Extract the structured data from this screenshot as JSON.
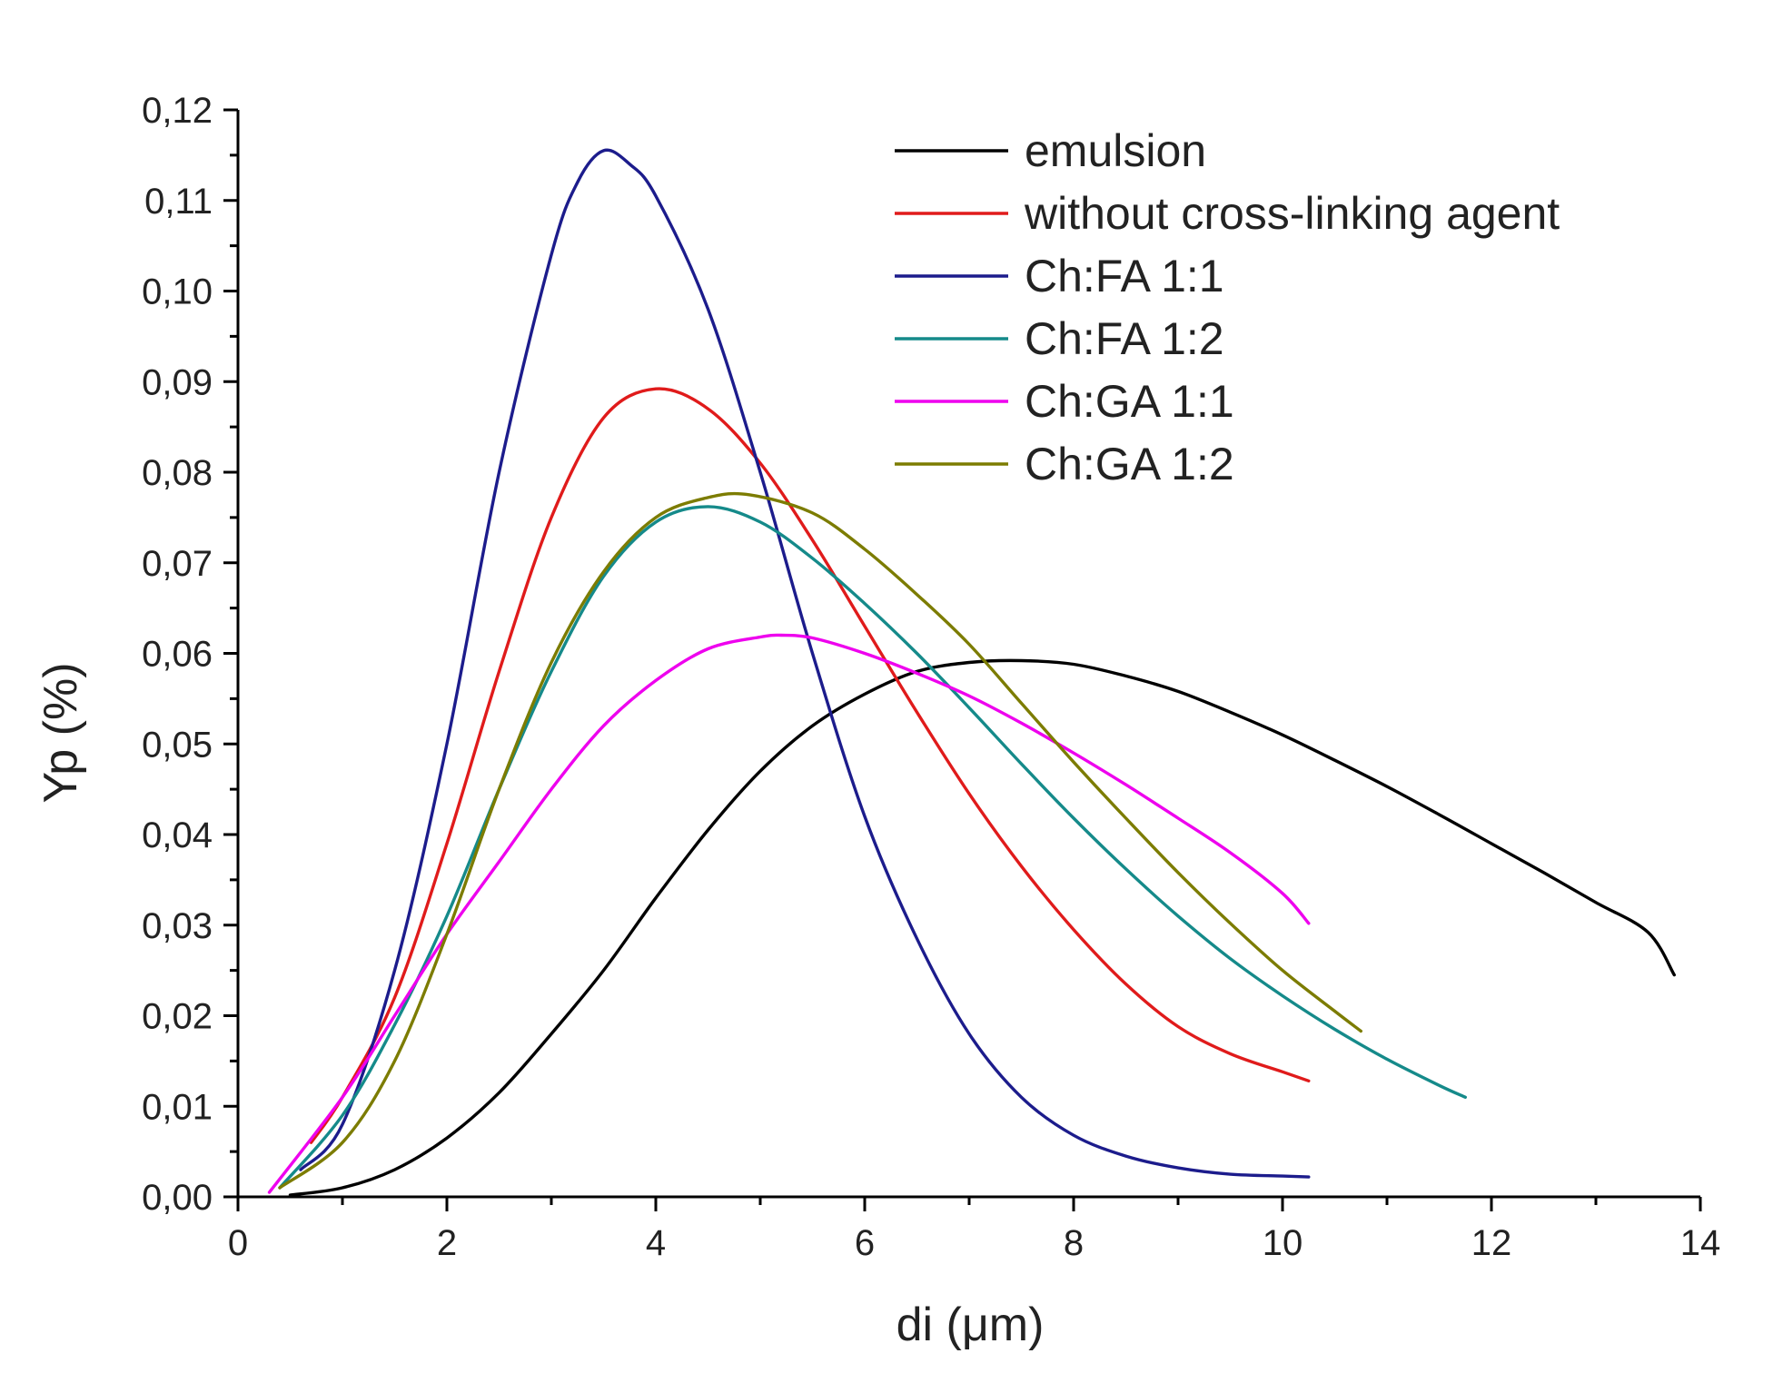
{
  "chart_data": {
    "type": "line",
    "title": "",
    "xlabel": "di (μm)",
    "ylabel": "Yp (%)",
    "xlim": [
      0,
      14
    ],
    "ylim": [
      0,
      0.12
    ],
    "x_ticks": [
      0,
      2,
      4,
      6,
      8,
      10,
      12,
      14
    ],
    "x_tick_labels": [
      "0",
      "2",
      "4",
      "6",
      "8",
      "10",
      "12",
      "14"
    ],
    "y_ticks": [
      0,
      0.01,
      0.02,
      0.03,
      0.04,
      0.05,
      0.06,
      0.07,
      0.08,
      0.09,
      0.1,
      0.11,
      0.12
    ],
    "y_tick_labels": [
      "0,00",
      "0,01",
      "0,02",
      "0,03",
      "0,04",
      "0,05",
      "0,06",
      "0,07",
      "0,08",
      "0,09",
      "0,10",
      "0,11",
      "0,12"
    ],
    "legend_position": "top-right",
    "grid": false,
    "series": [
      {
        "name": "emulsion",
        "color": "#000000",
        "x": [
          0.5,
          1,
          1.5,
          2,
          2.5,
          3,
          3.5,
          4,
          4.5,
          5,
          5.5,
          6,
          6.5,
          7,
          7.5,
          8,
          8.5,
          9,
          9.5,
          10,
          10.5,
          11,
          11.5,
          12,
          12.5,
          13,
          13.5,
          13.75
        ],
        "y": [
          0.0002,
          0.001,
          0.003,
          0.0065,
          0.0115,
          0.018,
          0.025,
          0.033,
          0.0405,
          0.047,
          0.052,
          0.0555,
          0.058,
          0.059,
          0.0592,
          0.0588,
          0.0575,
          0.0558,
          0.0535,
          0.051,
          0.0482,
          0.0453,
          0.0422,
          0.039,
          0.0358,
          0.0325,
          0.0292,
          0.0245
        ]
      },
      {
        "name": "without cross-linking agent",
        "color": "#e01b1b",
        "x": [
          0.7,
          1,
          1.5,
          2,
          2.5,
          3,
          3.5,
          4,
          4.5,
          5,
          5.5,
          6,
          6.5,
          7,
          7.5,
          8,
          8.5,
          9,
          9.5,
          10,
          10.25
        ],
        "y": [
          0.006,
          0.011,
          0.022,
          0.039,
          0.058,
          0.075,
          0.086,
          0.0892,
          0.087,
          0.081,
          0.0725,
          0.063,
          0.0535,
          0.0445,
          0.0365,
          0.0295,
          0.0235,
          0.0188,
          0.0158,
          0.0138,
          0.0128
        ]
      },
      {
        "name": "Ch:FA 1:1",
        "color": "#1c1c8c",
        "x": [
          0.6,
          1,
          1.5,
          2,
          2.5,
          3,
          3.25,
          3.5,
          3.75,
          4,
          4.5,
          5,
          5.5,
          6,
          6.5,
          7,
          7.5,
          8,
          8.5,
          9,
          9.5,
          10,
          10.25
        ],
        "y": [
          0.003,
          0.008,
          0.025,
          0.05,
          0.08,
          0.104,
          0.112,
          0.1155,
          0.114,
          0.1105,
          0.098,
          0.08,
          0.06,
          0.042,
          0.0285,
          0.018,
          0.011,
          0.0068,
          0.0045,
          0.0032,
          0.0025,
          0.0023,
          0.0022
        ]
      },
      {
        "name": "Ch:FA 1:2",
        "color": "#158a8a",
        "x": [
          0.4,
          1,
          1.5,
          2,
          2.5,
          3,
          3.5,
          4,
          4.5,
          5,
          5.5,
          6,
          6.5,
          7,
          7.5,
          8,
          8.5,
          9,
          9.5,
          10,
          10.5,
          11,
          11.5,
          11.75
        ],
        "y": [
          0.001,
          0.009,
          0.019,
          0.031,
          0.045,
          0.058,
          0.0685,
          0.0745,
          0.0762,
          0.0745,
          0.0705,
          0.0655,
          0.06,
          0.054,
          0.0478,
          0.0418,
          0.0362,
          0.031,
          0.0263,
          0.0222,
          0.0185,
          0.0152,
          0.0123,
          0.011
        ]
      },
      {
        "name": "Ch:GA 1:1",
        "color": "#ee00ee",
        "x": [
          0.3,
          1,
          1.5,
          2,
          2.5,
          3,
          3.5,
          4,
          4.5,
          5,
          5.2,
          5.5,
          6,
          6.5,
          7,
          7.5,
          8,
          8.5,
          9,
          9.5,
          10,
          10.25
        ],
        "y": [
          0.0005,
          0.011,
          0.02,
          0.029,
          0.037,
          0.045,
          0.052,
          0.057,
          0.0605,
          0.0618,
          0.062,
          0.0617,
          0.06,
          0.0578,
          0.0553,
          0.0523,
          0.049,
          0.0455,
          0.0418,
          0.038,
          0.0335,
          0.0302
        ]
      },
      {
        "name": "Ch:GA 1:2",
        "color": "#7c7c00",
        "x": [
          0.4,
          1,
          1.5,
          2,
          2.5,
          3,
          3.5,
          4,
          4.5,
          4.9,
          5.5,
          6,
          6.5,
          7,
          7.5,
          8,
          8.5,
          9,
          9.5,
          10,
          10.5,
          10.75
        ],
        "y": [
          0.001,
          0.006,
          0.015,
          0.029,
          0.045,
          0.059,
          0.069,
          0.075,
          0.0772,
          0.0775,
          0.0755,
          0.0715,
          0.0665,
          0.061,
          0.0545,
          0.048,
          0.0418,
          0.0358,
          0.0302,
          0.025,
          0.0205,
          0.0183
        ]
      }
    ]
  }
}
